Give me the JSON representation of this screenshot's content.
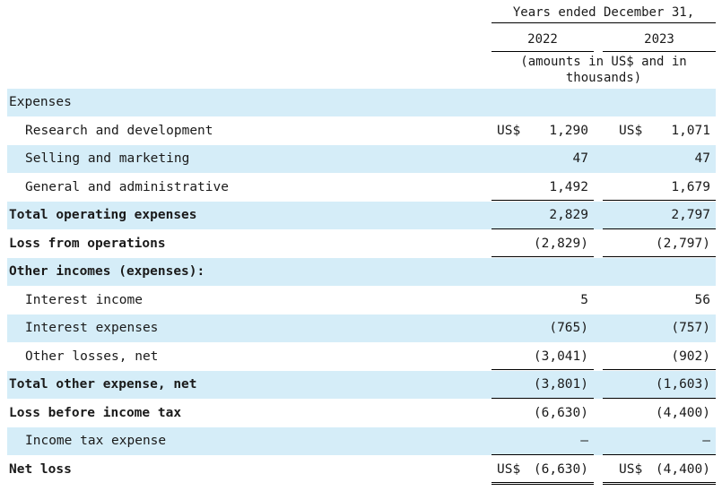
{
  "header": {
    "period": "Years ended December  31,",
    "year1": "2022",
    "year2": "2023",
    "unit": "(amounts in US$ and in\nthousands)"
  },
  "rows": [
    {
      "label": "Expenses",
      "indent": false,
      "bold": false,
      "currency": "",
      "v1": "",
      "v2": ""
    },
    {
      "label": "Research and development",
      "indent": true,
      "bold": false,
      "currency": "US$",
      "v1": "1,290",
      "v2": "1,071"
    },
    {
      "label": "Selling and marketing",
      "indent": true,
      "bold": false,
      "currency": "",
      "v1": "47",
      "v2": "47"
    },
    {
      "label": "General and administrative",
      "indent": true,
      "bold": false,
      "currency": "",
      "v1": "1,492",
      "v2": "1,679"
    },
    {
      "label": "Total operating expenses",
      "indent": false,
      "bold": true,
      "currency": "",
      "v1": "2,829",
      "v2": "2,797"
    },
    {
      "label": "Loss from operations",
      "indent": false,
      "bold": true,
      "currency": "",
      "v1": "(2,829)",
      "v2": "(2,797)"
    },
    {
      "label": "Other incomes (expenses):",
      "indent": false,
      "bold": true,
      "currency": "",
      "v1": "",
      "v2": ""
    },
    {
      "label": "Interest income",
      "indent": true,
      "bold": false,
      "currency": "",
      "v1": "5",
      "v2": "56"
    },
    {
      "label": "Interest expenses",
      "indent": true,
      "bold": false,
      "currency": "",
      "v1": "(765)",
      "v2": "(757)"
    },
    {
      "label": "Other losses, net",
      "indent": true,
      "bold": false,
      "currency": "",
      "v1": "(3,041)",
      "v2": "(902)"
    },
    {
      "label": "Total other expense, net",
      "indent": false,
      "bold": true,
      "currency": "",
      "v1": "(3,801)",
      "v2": "(1,603)"
    },
    {
      "label": "Loss before income tax",
      "indent": false,
      "bold": true,
      "currency": "",
      "v1": "(6,630)",
      "v2": "(4,400)"
    },
    {
      "label": "Income tax expense",
      "indent": true,
      "bold": false,
      "currency": "",
      "v1": "—",
      "v2": "—"
    },
    {
      "label": "Net loss",
      "indent": false,
      "bold": true,
      "currency": "US$",
      "v1": "(6,630)",
      "v2": "(4,400)"
    }
  ],
  "colors": {
    "band": "#d5edf8"
  }
}
